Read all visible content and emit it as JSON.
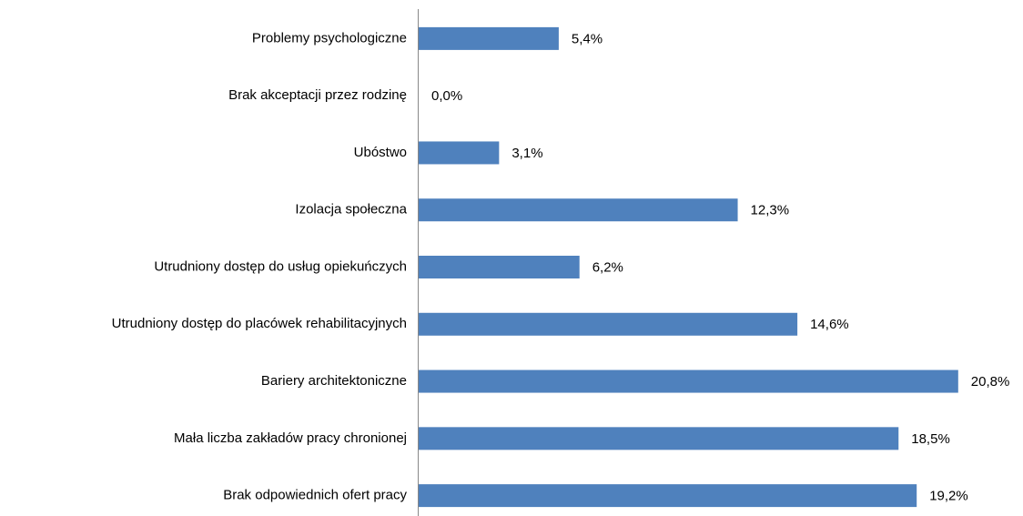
{
  "chart_data": {
    "type": "hbar",
    "categories": [
      "Problemy psychologiczne",
      "Brak akceptacji przez rodzinę",
      "Ubóstwo",
      "Izolacja społeczna",
      "Utrudniony dostęp do usług opiekuńczych",
      "Utrudniony dostęp do placówek rehabilitacyjnych",
      "Bariery architektoniczne",
      "Mała liczba zakładów pracy chronionej",
      "Brak odpowiednich ofert pracy"
    ],
    "values": [
      5.4,
      0,
      3.1,
      12.3,
      6.2,
      14.6,
      20.8,
      18.5,
      19.2
    ],
    "value_labels": [
      "5,4%",
      "0,0%",
      "3,1%",
      "12,3%",
      "6,2%",
      "14,6%",
      "20,8%",
      "18,5%",
      "19,2%"
    ],
    "color": "#4f81bd",
    "xlim": [
      0,
      22
    ]
  }
}
